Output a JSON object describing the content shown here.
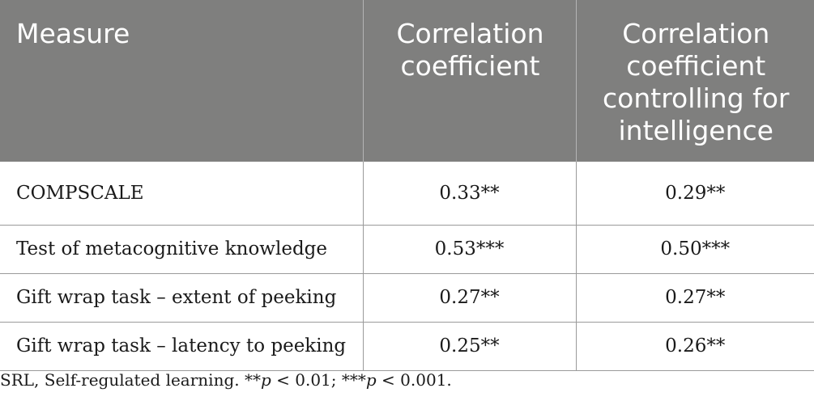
{
  "table": {
    "headers": [
      "Measure",
      "Correlation coefficient",
      "Correlation coefficient controlling for intelligence"
    ],
    "rows": [
      {
        "measure": "COMPSCALE",
        "r": "0.33**",
        "r_controlled": "0.29**"
      },
      {
        "measure": "Test of metacognitive knowledge",
        "r": "0.53***",
        "r_controlled": "0.50***"
      },
      {
        "measure": "Gift wrap task – extent of peeking",
        "r": "0.27**",
        "r_controlled": "0.27**"
      },
      {
        "measure": "Gift wrap task – latency to peeking",
        "r": "0.25**",
        "r_controlled": "0.26**"
      }
    ]
  },
  "footnote": {
    "part1": "SRL, Self-regulated learning. **",
    "p1": "p",
    "part2": " < 0.01; ***",
    "p2": "p",
    "part3": " < 0.001."
  },
  "colors": {
    "header_bg": "#7f7f7e",
    "header_text": "#ffffff",
    "grid": "#9a9a9a"
  }
}
